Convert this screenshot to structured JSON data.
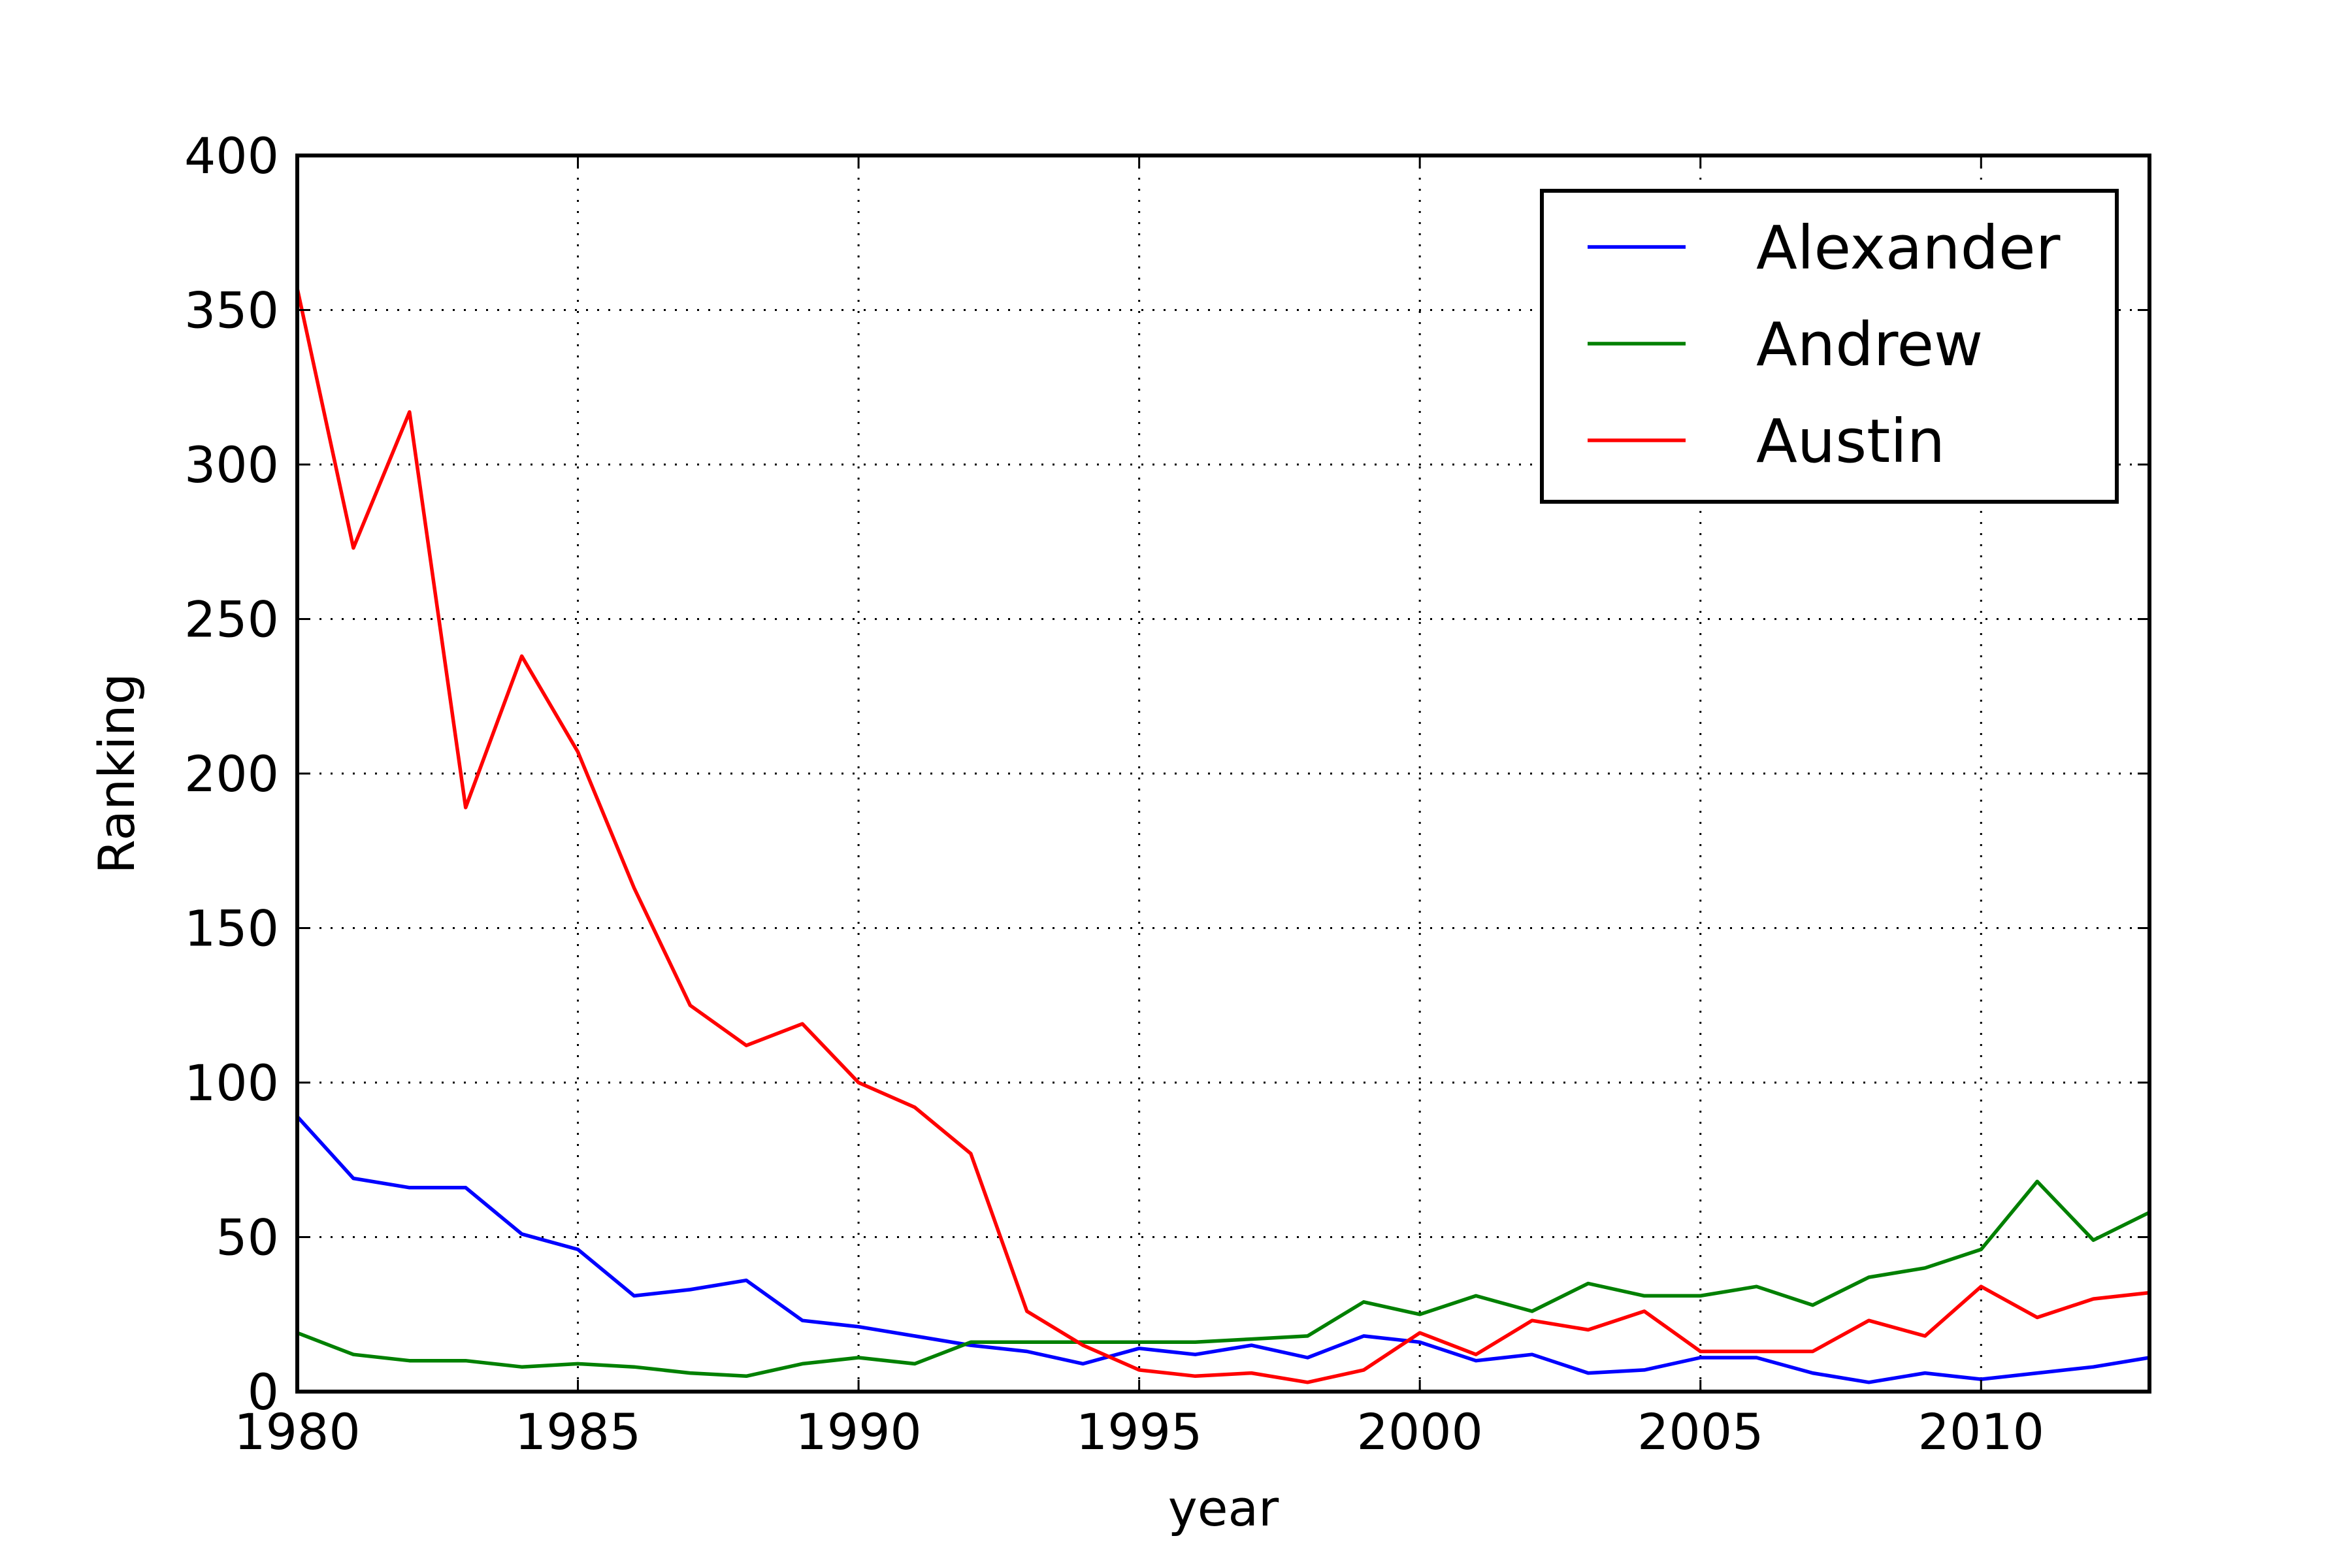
{
  "chart_data": {
    "type": "line",
    "title": "",
    "xlabel": "year",
    "ylabel": "Ranking",
    "xlim": [
      1980,
      2013
    ],
    "ylim": [
      0,
      400
    ],
    "x_ticks": [
      1980,
      1985,
      1990,
      1995,
      2000,
      2005,
      2010
    ],
    "y_ticks": [
      0,
      50,
      100,
      150,
      200,
      250,
      300,
      350,
      400
    ],
    "grid": true,
    "legend_position": "top-right",
    "x": [
      1980,
      1981,
      1982,
      1983,
      1984,
      1985,
      1986,
      1987,
      1988,
      1989,
      1990,
      1991,
      1992,
      1993,
      1994,
      1995,
      1996,
      1997,
      1998,
      1999,
      2000,
      2001,
      2002,
      2003,
      2004,
      2005,
      2006,
      2007,
      2008,
      2009,
      2010,
      2011,
      2012,
      2013
    ],
    "series": [
      {
        "name": "Alexander",
        "color": "#0000ff",
        "values": [
          89,
          69,
          66,
          66,
          51,
          46,
          31,
          33,
          36,
          23,
          21,
          18,
          15,
          13,
          9,
          14,
          12,
          15,
          11,
          18,
          16,
          10,
          12,
          6,
          7,
          11,
          11,
          6,
          3,
          6,
          4,
          6,
          8,
          11
        ]
      },
      {
        "name": "Andrew",
        "color": "#008000",
        "values": [
          19,
          12,
          10,
          10,
          8,
          9,
          8,
          6,
          5,
          9,
          11,
          9,
          16,
          16,
          16,
          16,
          16,
          17,
          18,
          29,
          25,
          31,
          26,
          35,
          31,
          31,
          34,
          28,
          37,
          40,
          46,
          68,
          49,
          58
        ]
      },
      {
        "name": "Austin",
        "color": "#ff0000",
        "values": [
          357,
          273,
          317,
          189,
          238,
          207,
          163,
          125,
          112,
          119,
          100,
          92,
          77,
          26,
          15,
          7,
          5,
          6,
          3,
          7,
          19,
          12,
          23,
          20,
          26,
          13,
          13,
          13,
          23,
          18,
          34,
          24,
          30,
          32
        ]
      }
    ]
  }
}
